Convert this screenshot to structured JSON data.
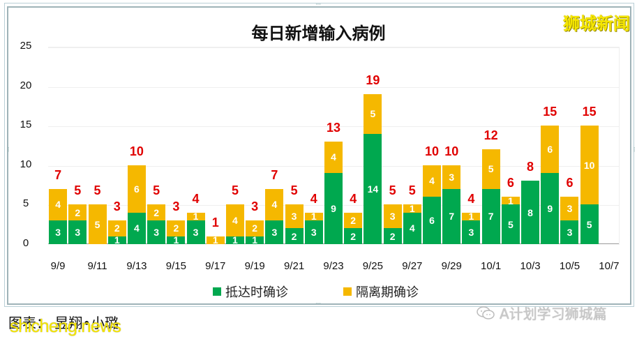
{
  "header": {
    "title": "每日新增输入病例",
    "brand": "狮城新闻"
  },
  "colors": {
    "arrival": "#00a84f",
    "quarantine": "#f5b800",
    "total_label": "#e00000"
  },
  "legend": {
    "arrival": "抵达时确诊",
    "quarantine": "隔离期确诊"
  },
  "footer": {
    "caption": "图表： 昱翔•小璐",
    "watermark_left": "shicheng.news",
    "watermark_right": "A计划学习狮城篇"
  },
  "y_ticks": [
    "25",
    "20",
    "15",
    "10",
    "5",
    "0"
  ],
  "x_ticks": [
    "9/9",
    "9/11",
    "9/13",
    "9/15",
    "9/17",
    "9/19",
    "9/21",
    "9/23",
    "9/25",
    "9/27",
    "9/29",
    "10/1",
    "10/3",
    "10/5",
    "10/7"
  ],
  "chart_data": {
    "type": "bar",
    "stacked": true,
    "title": "每日新增输入病例",
    "xlabel": "",
    "ylabel": "",
    "ylim": [
      0,
      25
    ],
    "yticks": [
      0,
      5,
      10,
      15,
      20,
      25
    ],
    "grid": true,
    "legend_position": "bottom",
    "categories": [
      "9/9",
      "9/10",
      "9/11",
      "9/12",
      "9/13",
      "9/14",
      "9/15",
      "9/16",
      "9/17",
      "9/18",
      "9/19",
      "9/20",
      "9/21",
      "9/22",
      "9/23",
      "9/24",
      "9/25",
      "9/26",
      "9/27",
      "9/28",
      "9/29",
      "9/30",
      "10/1",
      "10/2",
      "10/3",
      "10/4",
      "10/5",
      "10/6",
      "10/7"
    ],
    "series": [
      {
        "name": "抵达时确诊",
        "color": "#00a84f",
        "values": [
          3,
          3,
          0,
          1,
          4,
          3,
          1,
          3,
          0,
          1,
          1,
          3,
          2,
          3,
          9,
          2,
          14,
          2,
          4,
          6,
          7,
          3,
          7,
          5,
          8,
          9,
          3,
          5,
          null
        ]
      },
      {
        "name": "隔离期确诊",
        "color": "#f5b800",
        "values": [
          4,
          2,
          5,
          2,
          6,
          2,
          2,
          1,
          1,
          4,
          2,
          4,
          3,
          1,
          4,
          2,
          5,
          3,
          1,
          4,
          3,
          1,
          5,
          1,
          0,
          6,
          3,
          10,
          null
        ]
      }
    ],
    "totals": [
      7,
      5,
      5,
      3,
      10,
      5,
      3,
      4,
      1,
      5,
      3,
      7,
      5,
      4,
      13,
      4,
      19,
      5,
      5,
      10,
      10,
      4,
      12,
      6,
      8,
      15,
      6,
      15,
      null
    ]
  }
}
